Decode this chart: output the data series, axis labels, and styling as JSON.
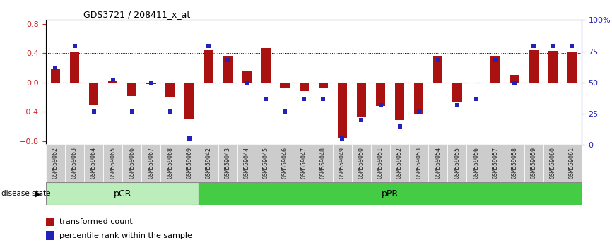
{
  "title": "GDS3721 / 208411_x_at",
  "samples": [
    "GSM559062",
    "GSM559063",
    "GSM559064",
    "GSM559065",
    "GSM559066",
    "GSM559067",
    "GSM559068",
    "GSM559069",
    "GSM559042",
    "GSM559043",
    "GSM559044",
    "GSM559045",
    "GSM559046",
    "GSM559047",
    "GSM559048",
    "GSM559049",
    "GSM559050",
    "GSM559051",
    "GSM559052",
    "GSM559053",
    "GSM559054",
    "GSM559055",
    "GSM559056",
    "GSM559057",
    "GSM559058",
    "GSM559059",
    "GSM559060",
    "GSM559061"
  ],
  "bar_values": [
    0.18,
    0.41,
    -0.31,
    0.03,
    -0.18,
    -0.02,
    -0.2,
    -0.5,
    0.44,
    0.35,
    0.15,
    0.47,
    -0.08,
    -0.12,
    -0.08,
    -0.75,
    -0.47,
    -0.32,
    -0.51,
    -0.43,
    0.35,
    -0.27,
    0.0,
    0.35,
    0.1,
    0.44,
    0.43,
    0.42
  ],
  "dot_values_pct": [
    62,
    79,
    27,
    52,
    27,
    50,
    27,
    5,
    79,
    68,
    50,
    37,
    27,
    37,
    37,
    5,
    20,
    32,
    15,
    27,
    68,
    32,
    37,
    68,
    50,
    79,
    79,
    79
  ],
  "pCR_count": 8,
  "pPR_count": 20,
  "bar_color": "#AA1111",
  "dot_color": "#2222BB",
  "pCR_color": "#BBEEBB",
  "pPR_color": "#44CC44",
  "tick_bg_color": "#CCCCCC",
  "label_color": "#222222",
  "background_color": "#FFFFFF",
  "ylim": [
    -0.85,
    0.85
  ],
  "yticks": [
    -0.8,
    -0.4,
    0.0,
    0.4,
    0.8
  ],
  "right_yticks": [
    0,
    25,
    50,
    75,
    100
  ],
  "right_yticklabels": [
    "0",
    "25",
    "50",
    "75",
    "100%"
  ],
  "dotted_lines": [
    0.4,
    -0.4
  ],
  "zero_line_color": "#CC2222",
  "bar_width": 0.5
}
